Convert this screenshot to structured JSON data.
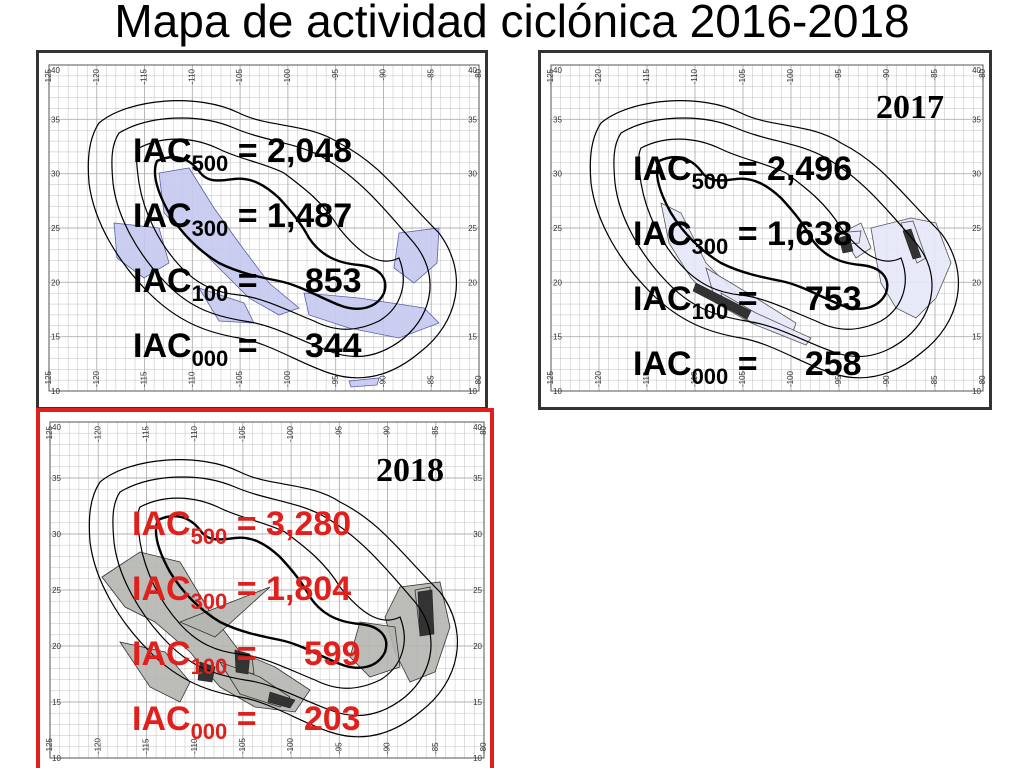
{
  "title": "Mapa de actividad ciclónica 2016-2018",
  "grid_labels": {
    "lon": [
      "-125",
      "-120",
      "-115",
      "-110",
      "-105",
      "-100",
      "-95",
      "-90",
      "-85",
      "-80"
    ],
    "lat": [
      "40",
      "35",
      "30",
      "25",
      "20",
      "15",
      "10"
    ]
  },
  "colors": {
    "default_border": "#333333",
    "highlight_border": "#e0201c",
    "grid": "#b0b0b0"
  },
  "panels": [
    {
      "id": "2016",
      "year_label": "",
      "text_color": "#000000",
      "border_color": "#333333",
      "fill": "#c5c9f0",
      "fill_stroke": "#5a5faa",
      "stats": [
        {
          "base": "IAC",
          "sub": "500",
          "eq": " = 2,048"
        },
        {
          "base": "IAC",
          "sub": "300",
          "eq": " = 1,487"
        },
        {
          "base": "IAC",
          "sub": "100",
          "eq": " =     853"
        },
        {
          "base": "IAC",
          "sub": "000",
          "eq": " =     344"
        }
      ]
    },
    {
      "id": "2017",
      "year_label": "2017",
      "text_color": "#000000",
      "border_color": "#333333",
      "fill": "#e6e8f8",
      "fill_stroke": "#555555",
      "stats": [
        {
          "base": "IAC",
          "sub": "500",
          "eq": " = 2,496"
        },
        {
          "base": "IAC",
          "sub": "300",
          "eq": " = 1,638"
        },
        {
          "base": "IAC",
          "sub": "100",
          "eq": " =     753"
        },
        {
          "base": "IAC",
          "sub": "000",
          "eq": " =     258"
        }
      ]
    },
    {
      "id": "2018",
      "year_label": "2018",
      "text_color": "#e0201c",
      "border_color": "#e0201c",
      "fill": "#b5b5b0",
      "fill_stroke": "#333333",
      "stats": [
        {
          "base": "IAC",
          "sub": "500",
          "eq": " = 3,280"
        },
        {
          "base": "IAC",
          "sub": "300",
          "eq": " = 1,804"
        },
        {
          "base": "IAC",
          "sub": "100",
          "eq": " =     599"
        },
        {
          "base": "IAC",
          "sub": "000",
          "eq": " =     203"
        }
      ]
    }
  ]
}
